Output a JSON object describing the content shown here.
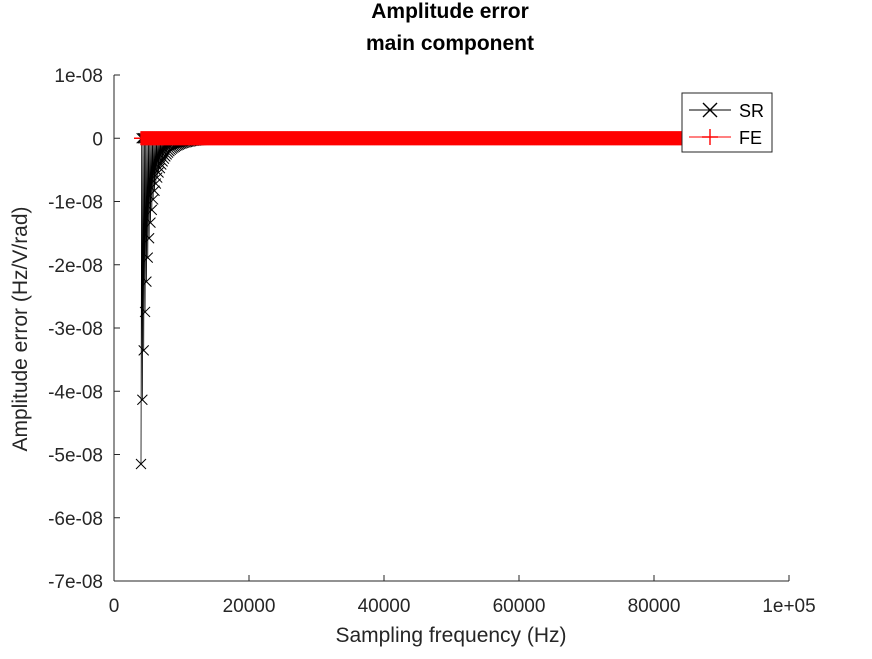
{
  "chart_data": {
    "type": "scatter",
    "title": "Amplitude error",
    "subtitle": "main component",
    "xlabel": "Sampling frequency (Hz)",
    "ylabel": "Amplitude error (Hz/V/rad)",
    "xlim": [
      0,
      100000
    ],
    "ylim": [
      -7e-08,
      1e-08
    ],
    "x_ticks": [
      0,
      20000,
      40000,
      60000,
      80000,
      100000
    ],
    "x_tick_labels": [
      "0",
      "20000",
      "40000",
      "60000",
      "80000",
      "1e+05"
    ],
    "y_ticks": [
      1e-08,
      0,
      -1e-08,
      -2e-08,
      -3e-08,
      -4e-08,
      -5e-08,
      -6e-08,
      -7e-08
    ],
    "y_tick_labels": [
      "1e-08",
      "0",
      "-1e-08",
      "-2e-08",
      "-3e-08",
      "-4e-08",
      "-5e-08",
      "-6e-08",
      "-7e-08"
    ],
    "grid": false,
    "legend_position": "top-right",
    "series": [
      {
        "name": "SR",
        "color": "#000000",
        "marker": "x",
        "x_start": 4000,
        "x_end": 92000,
        "x_step": 100,
        "peak_error": -5.15e-08,
        "peak_x": 4000,
        "decay": "inverse-power",
        "decay_exponent": 4.5
      },
      {
        "name": "FE",
        "color": "#ff0000",
        "marker": "+",
        "x_start": 4000,
        "x_end": 92000,
        "x_step": 100,
        "constant_value": 0
      }
    ]
  }
}
